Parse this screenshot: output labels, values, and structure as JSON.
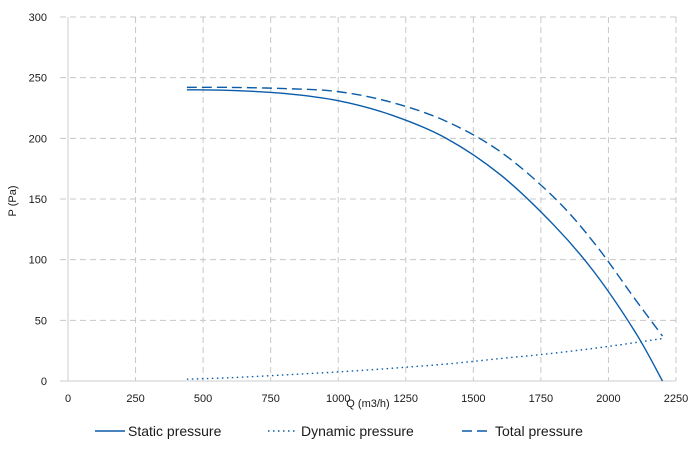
{
  "colors": {
    "series": "#0a5ca8",
    "grid": "#c8c8c8",
    "axis": "#cccccc"
  },
  "chart_data": {
    "type": "line",
    "title": "",
    "xlabel": "Q (m3/h)",
    "ylabel": "P (Pa)",
    "xlim": [
      0,
      2250
    ],
    "ylim": [
      0,
      300
    ],
    "xticks": [
      0,
      250,
      500,
      750,
      1000,
      1250,
      1500,
      1750,
      2000,
      2250
    ],
    "yticks": [
      0,
      50,
      100,
      150,
      200,
      250,
      300
    ],
    "grid": true,
    "legend": "bottom",
    "series": [
      {
        "name": "Static pressure",
        "style": "solid",
        "x": [
          440,
          600,
          800,
          1000,
          1200,
          1400,
          1600,
          1800,
          1950,
          2100,
          2200
        ],
        "y": [
          240,
          239.5,
          237,
          231,
          219,
          200,
          170,
          128,
          89,
          40,
          0
        ]
      },
      {
        "name": "Dynamic pressure",
        "style": "dotted",
        "x": [
          440,
          600,
          800,
          1000,
          1200,
          1400,
          1600,
          1800,
          2000,
          2200
        ],
        "y": [
          1.5,
          2.7,
          5,
          7.5,
          10.5,
          14,
          18.5,
          23,
          28.5,
          35
        ]
      },
      {
        "name": "Total pressure",
        "style": "dashed",
        "x": [
          440,
          600,
          800,
          1000,
          1200,
          1400,
          1600,
          1800,
          1950,
          2100,
          2200
        ],
        "y": [
          242,
          242,
          241,
          238.5,
          229.5,
          214,
          189,
          151,
          113,
          67,
          37
        ]
      }
    ]
  }
}
